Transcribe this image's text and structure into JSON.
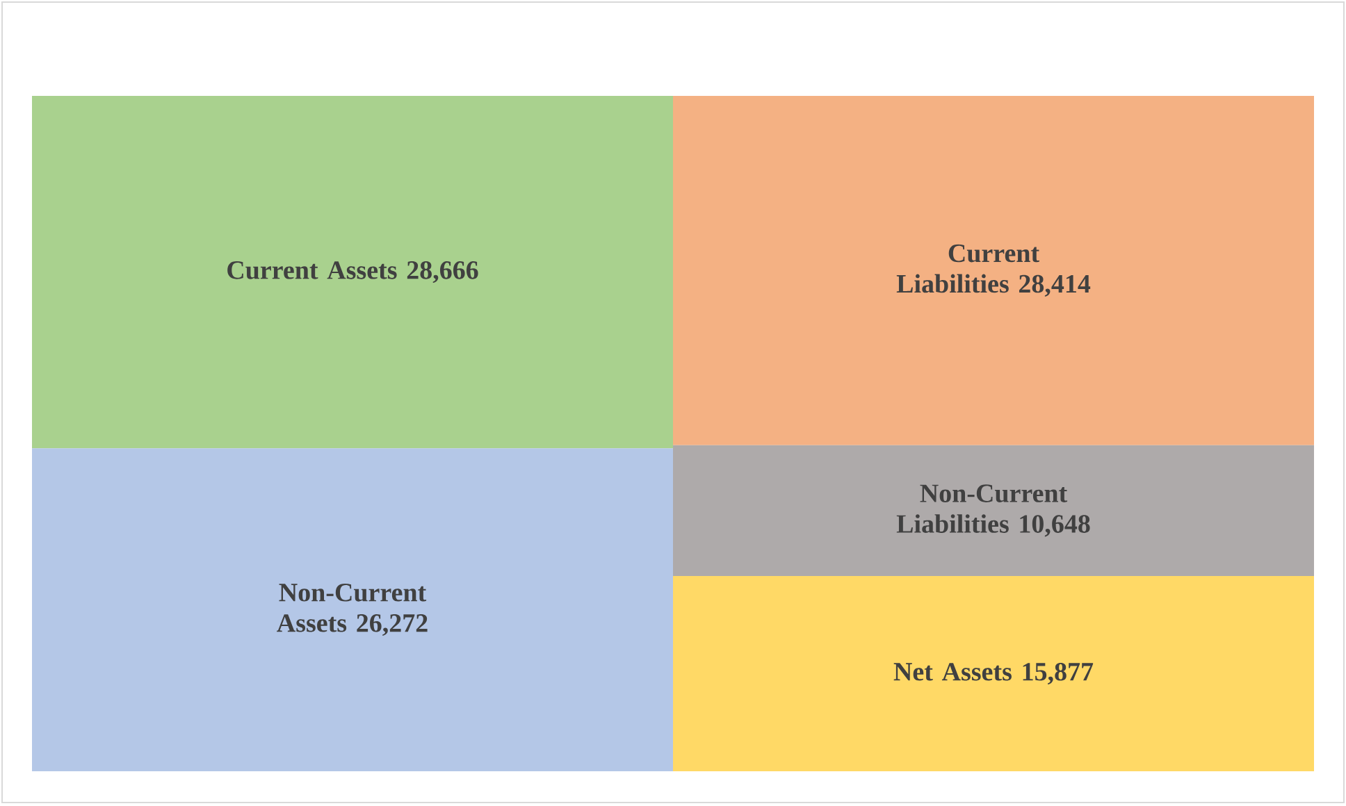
{
  "chart_data": {
    "type": "other",
    "categories": [
      "Current Assets",
      "Non-Current Assets",
      "Current Liabilities",
      "Non-Current Liabilities",
      "Net Assets"
    ],
    "series": [
      {
        "values": [
          28666,
          26272,
          null,
          null,
          null
        ],
        "colors": [
          "#a9d18e",
          "#b4c7e7",
          null,
          null,
          null
        ],
        "value_labels": [
          "28,666",
          "26,272",
          null,
          null,
          null
        ]
      },
      {
        "values": [
          null,
          null,
          28414,
          10648,
          15877
        ],
        "colors": [
          null,
          null,
          "#f4b183",
          "#aeaaaa",
          "#ffd966"
        ],
        "value_labels": [
          null,
          null,
          "28,414",
          "10,648",
          "15,877"
        ]
      }
    ]
  }
}
